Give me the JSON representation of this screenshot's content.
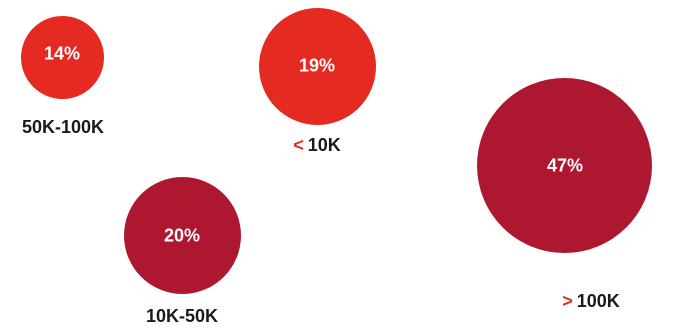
{
  "chart_data": {
    "type": "bubble",
    "series": [
      {
        "category": "50K-100K",
        "prefix": "",
        "label": "50K-100K",
        "value": 14,
        "value_label": "14%",
        "color": "#e52a21"
      },
      {
        "category": "< 10K",
        "prefix": "<",
        "label": "10K",
        "value": 19,
        "value_label": "19%",
        "color": "#e52a21"
      },
      {
        "category": "10K-50K",
        "prefix": "",
        "label": "10K-50K",
        "value": 20,
        "value_label": "20%",
        "color": "#ad172f"
      },
      {
        "category": "> 100K",
        "prefix": ">",
        "label": "100K",
        "value": 47,
        "value_label": "47%",
        "color": "#ad172f"
      }
    ],
    "colors": {
      "accent_red": "#e52a21",
      "dark_red": "#ad172f",
      "label_text": "#1a1a1a"
    }
  }
}
